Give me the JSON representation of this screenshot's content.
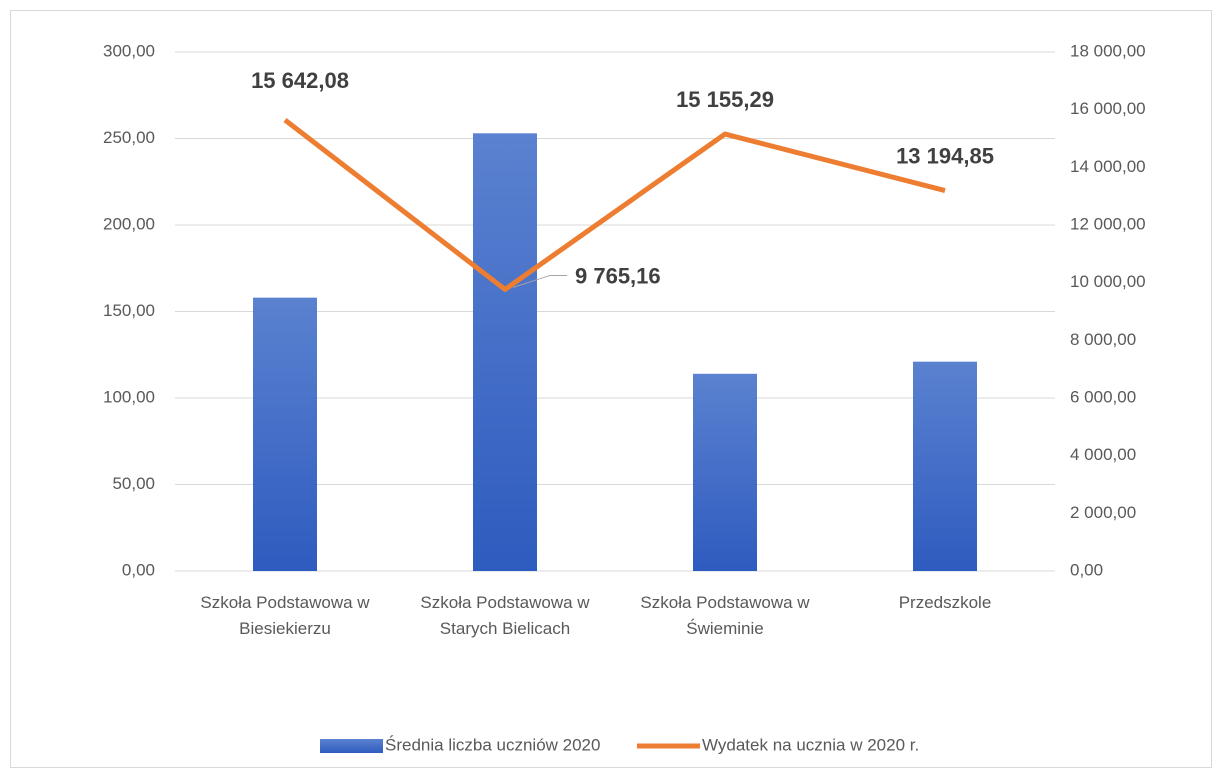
{
  "chart_data": {
    "type": "bar",
    "categories": [
      "Szkoła Podstawowa w Biesiekierzu",
      "Szkoła Podstawowa w Starych Bielicach",
      "Szkoła Podstawowa w Świeminie",
      "Przedszkole"
    ],
    "series": [
      {
        "name": "Średnia liczba uczniów 2020",
        "type": "bar",
        "color": "#4472c4",
        "values": [
          158,
          253,
          114,
          121
        ]
      },
      {
        "name": "Wydatek na ucznia w 2020 r.",
        "type": "line",
        "axis": "y2",
        "color": "#ed7d31",
        "values": [
          15642.08,
          9765.16,
          15155.29,
          13194.85
        ],
        "value_labels": [
          "15 642,08",
          "9 765,16",
          "15 155,29",
          "13 194,85"
        ]
      }
    ],
    "ylim": [
      0,
      300
    ],
    "yticks": [
      {
        "value": 0,
        "label": "0,00"
      },
      {
        "value": 50,
        "label": "50,00"
      },
      {
        "value": 100,
        "label": "100,00"
      },
      {
        "value": 150,
        "label": "150,00"
      },
      {
        "value": 200,
        "label": "200,00"
      },
      {
        "value": 250,
        "label": "250,00"
      },
      {
        "value": 300,
        "label": "300,00"
      }
    ],
    "y2lim": [
      0,
      18000
    ],
    "y2ticks": [
      {
        "value": 0,
        "label": "0,00"
      },
      {
        "value": 2000,
        "label": "2 000,00"
      },
      {
        "value": 4000,
        "label": "4 000,00"
      },
      {
        "value": 6000,
        "label": "6 000,00"
      },
      {
        "value": 8000,
        "label": "8 000,00"
      },
      {
        "value": 10000,
        "label": "10 000,00"
      },
      {
        "value": 12000,
        "label": "12 000,00"
      },
      {
        "value": 14000,
        "label": "14 000,00"
      },
      {
        "value": 16000,
        "label": "16 000,00"
      },
      {
        "value": 18000,
        "label": "18 000,00"
      }
    ],
    "grid": true,
    "legend": "bottom"
  }
}
